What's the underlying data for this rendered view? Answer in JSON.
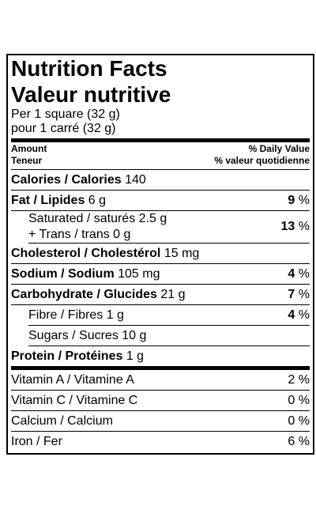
{
  "title_en": "Nutrition Facts",
  "title_fr": "Valeur nutritive",
  "serving_en": "Per 1 square (32 g)",
  "serving_fr": "pour 1 carré (32 g)",
  "header": {
    "amount_en": "Amount",
    "amount_fr": "Teneur",
    "dv_en": "% Daily Value",
    "dv_fr": "% valeur quotidienne"
  },
  "nutrients": [
    {
      "name": "Calories / Calories",
      "amount": "140"
    },
    {
      "name": "Fat / Lipides",
      "amount": "6 g",
      "dv": "9",
      "unit": "%",
      "sub": [
        {
          "lines": [
            {
              "name": "Saturated / saturés",
              "amount": "2.5 g"
            },
            {
              "name": "+ Trans / trans",
              "amount": "0 g"
            }
          ],
          "dv": "13",
          "unit": "%"
        }
      ]
    },
    {
      "name": "Cholesterol / Cholestérol",
      "amount": "15 mg"
    },
    {
      "name": "Sodium / Sodium",
      "amount": "105 mg",
      "dv": "4",
      "unit": "%"
    },
    {
      "name": "Carbohydrate / Glucides",
      "amount": "21 g",
      "dv": "7",
      "unit": "%",
      "sub": [
        {
          "lines": [
            {
              "name": "Fibre / Fibres",
              "amount": "1 g"
            }
          ],
          "dv": "4",
          "unit": "%"
        },
        {
          "lines": [
            {
              "name": "Sugars / Sucres",
              "amount": "10 g"
            }
          ]
        }
      ]
    },
    {
      "name": "Protein / Protéines",
      "amount": "1 g"
    }
  ],
  "vitamins": [
    {
      "name": "Vitamin A / Vitamine A",
      "dv": "2",
      "unit": "%"
    },
    {
      "name": "Vitamin C / Vitamine C",
      "dv": "0",
      "unit": "%"
    },
    {
      "name": "Calcium / Calcium",
      "dv": "0",
      "unit": "%"
    },
    {
      "name": "Iron / Fer",
      "dv": "6",
      "unit": "%"
    }
  ]
}
